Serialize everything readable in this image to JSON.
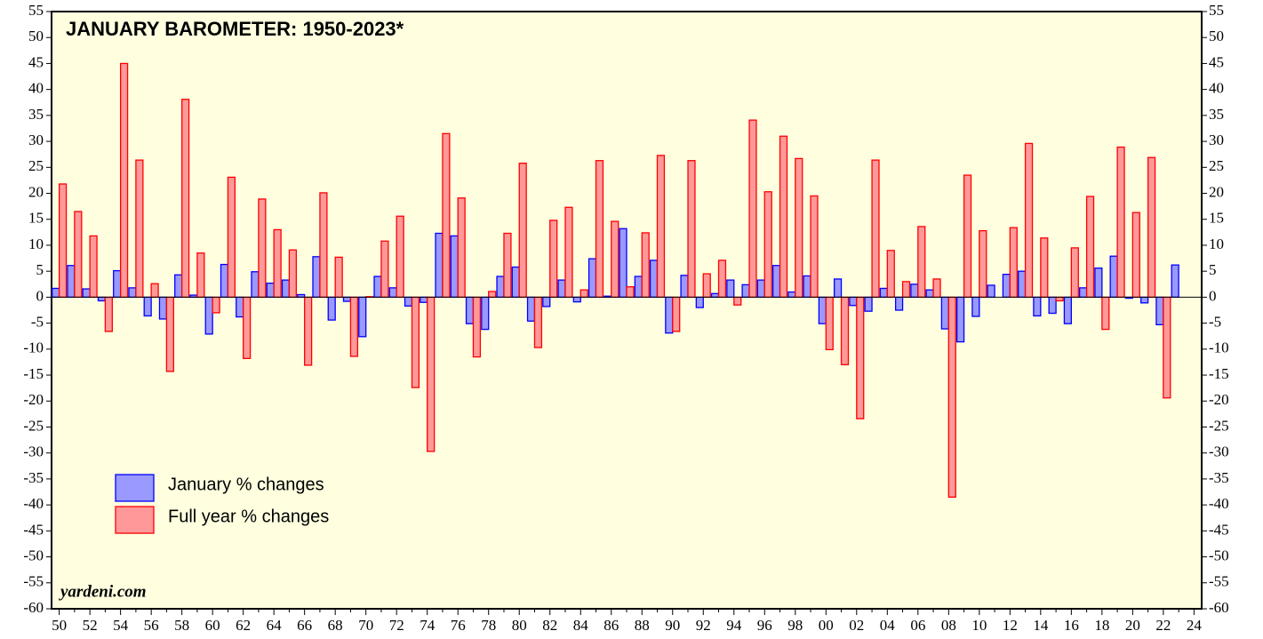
{
  "chart_data": {
    "type": "bar",
    "title": "JANUARY BAROMETER: 1950-2023*",
    "source": "yardeni.com",
    "categories": [
      "50",
      null,
      "52",
      null,
      "54",
      null,
      "56",
      null,
      "58",
      null,
      "60",
      null,
      "62",
      null,
      "64",
      null,
      "66",
      null,
      "68",
      null,
      "70",
      null,
      "72",
      null,
      "74",
      null,
      "76",
      null,
      "78",
      null,
      "80",
      null,
      "82",
      null,
      "84",
      null,
      "86",
      null,
      "88",
      null,
      "90",
      null,
      "92",
      null,
      "94",
      null,
      "96",
      null,
      "98",
      null,
      "00",
      null,
      "02",
      null,
      "04",
      null,
      "06",
      null,
      "08",
      null,
      "10",
      null,
      "12",
      null,
      "14",
      null,
      "16",
      null,
      "18",
      null,
      "20",
      null,
      "22",
      null,
      "24"
    ],
    "series": [
      {
        "name": "January % changes",
        "color": "#9999ff",
        "edge": "#0000ff",
        "values": [
          1.7,
          6.1,
          1.6,
          -0.7,
          5.1,
          1.8,
          -3.6,
          -4.2,
          4.3,
          0.4,
          -7.1,
          6.3,
          -3.8,
          4.9,
          2.7,
          3.3,
          0.5,
          7.8,
          -4.4,
          -0.8,
          -7.6,
          4.0,
          1.8,
          -1.7,
          -1.0,
          12.3,
          11.8,
          -5.1,
          -6.2,
          4.0,
          5.8,
          -4.6,
          -1.8,
          3.3,
          -0.9,
          7.4,
          0.2,
          13.2,
          4.0,
          7.1,
          -6.9,
          4.2,
          -2.0,
          0.7,
          3.3,
          2.4,
          3.3,
          6.1,
          1.0,
          4.1,
          -5.1,
          3.5,
          -1.6,
          -2.7,
          1.7,
          -2.5,
          2.5,
          1.4,
          -6.1,
          -8.6,
          -3.7,
          2.3,
          4.4,
          5.0,
          -3.6,
          -3.1,
          -5.1,
          1.8,
          5.6,
          7.9,
          -0.2,
          -1.1,
          -5.3,
          6.2,
          null
        ]
      },
      {
        "name": "Full year % changes",
        "color": "#ff9999",
        "edge": "#ff0000",
        "values": [
          21.8,
          16.5,
          11.8,
          -6.6,
          45.0,
          26.4,
          2.6,
          -14.3,
          38.1,
          8.5,
          -3.0,
          23.1,
          -11.8,
          18.9,
          13.0,
          9.1,
          -13.1,
          20.1,
          7.7,
          -11.4,
          0.1,
          10.8,
          15.6,
          -17.4,
          -29.7,
          31.5,
          19.1,
          -11.5,
          1.1,
          12.3,
          25.8,
          -9.7,
          14.8,
          17.3,
          1.4,
          26.3,
          14.6,
          2.0,
          12.4,
          27.3,
          -6.6,
          26.3,
          4.5,
          7.1,
          -1.5,
          34.1,
          20.3,
          31.0,
          26.7,
          19.5,
          -10.1,
          -13.0,
          -23.4,
          26.4,
          9.0,
          3.0,
          13.6,
          3.5,
          -38.5,
          23.5,
          12.8,
          0.0,
          13.4,
          29.6,
          11.4,
          -0.7,
          9.5,
          19.4,
          -6.2,
          28.9,
          16.3,
          26.9,
          -19.4,
          null,
          null
        ]
      }
    ],
    "ylim": [
      -60,
      55
    ],
    "yticks": [
      -60,
      -55,
      -50,
      -45,
      -40,
      -35,
      -30,
      -25,
      -20,
      -15,
      -10,
      -5,
      0,
      5,
      10,
      15,
      20,
      25,
      30,
      35,
      40,
      45,
      50,
      55
    ],
    "y2lim": [
      -60,
      55
    ],
    "y2ticks": [
      -60,
      -55,
      -50,
      -45,
      -40,
      -35,
      -30,
      -25,
      -20,
      -15,
      -10,
      -5,
      0,
      5,
      10,
      15,
      20,
      25,
      30,
      35,
      40,
      45,
      50,
      55
    ],
    "background": "#ffffe0",
    "legend": "lower left"
  }
}
